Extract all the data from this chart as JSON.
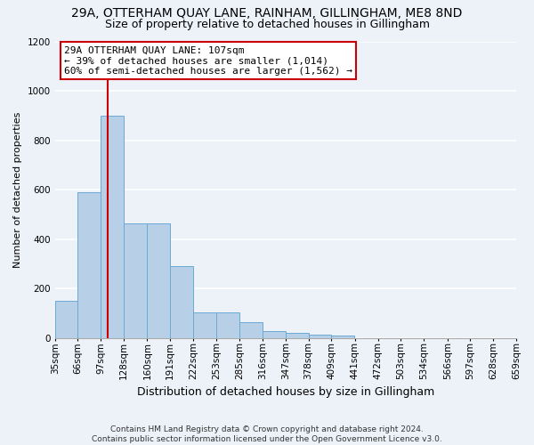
{
  "title1": "29A, OTTERHAM QUAY LANE, RAINHAM, GILLINGHAM, ME8 8ND",
  "title2": "Size of property relative to detached houses in Gillingham",
  "xlabel": "Distribution of detached houses by size in Gillingham",
  "ylabel": "Number of detached properties",
  "footer1": "Contains HM Land Registry data © Crown copyright and database right 2024.",
  "footer2": "Contains public sector information licensed under the Open Government Licence v3.0.",
  "annotation_line1": "29A OTTERHAM QUAY LANE: 107sqm",
  "annotation_line2": "← 39% of detached houses are smaller (1,014)",
  "annotation_line3": "60% of semi-detached houses are larger (1,562) →",
  "property_size": 107,
  "bin_labels": [
    "35sqm",
    "66sqm",
    "97sqm",
    "128sqm",
    "160sqm",
    "191sqm",
    "222sqm",
    "253sqm",
    "285sqm",
    "316sqm",
    "347sqm",
    "378sqm",
    "409sqm",
    "441sqm",
    "472sqm",
    "503sqm",
    "534sqm",
    "566sqm",
    "597sqm",
    "628sqm",
    "659sqm"
  ],
  "bin_edges": [
    35,
    66,
    97,
    128,
    160,
    191,
    222,
    253,
    285,
    316,
    347,
    378,
    409,
    441,
    472,
    503,
    534,
    566,
    597,
    628,
    659
  ],
  "bar_heights": [
    150,
    590,
    900,
    465,
    465,
    290,
    105,
    105,
    65,
    30,
    20,
    15,
    12,
    0,
    0,
    0,
    0,
    0,
    0,
    0
  ],
  "bar_color": "#b8cfe8",
  "bar_edge_color": "#6aaad4",
  "vline_color": "#cc0000",
  "vline_x": 107,
  "box_edge_color": "#cc0000",
  "ylim": [
    0,
    1200
  ],
  "yticks": [
    0,
    200,
    400,
    600,
    800,
    1000,
    1200
  ],
  "bg_color": "#edf2f9",
  "grid_color": "#ffffff",
  "title1_fontsize": 10,
  "title2_fontsize": 9,
  "xlabel_fontsize": 9,
  "ylabel_fontsize": 8,
  "tick_fontsize": 7.5,
  "annotation_fontsize": 8,
  "footer_fontsize": 6.5
}
